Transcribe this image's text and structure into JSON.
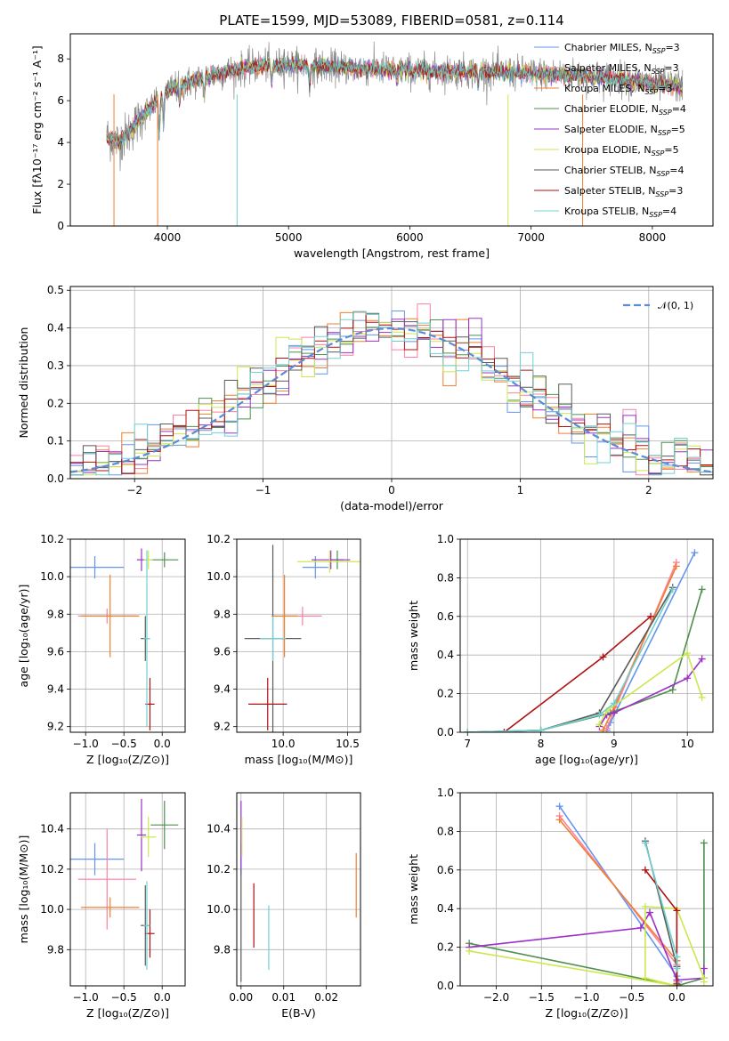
{
  "colors": {
    "Chabrier MILES": "#6495ed",
    "Salpeter MILES": "#ff7f9f",
    "Kroupa MILES": "#f07f2e",
    "Chabrier ELODIE": "#4f8f4f",
    "Salpeter ELODIE": "#9b30c8",
    "Kroupa ELODIE": "#cbe84f",
    "Chabrier STELIB": "#5a5a5a",
    "Salpeter STELIB": "#b01010",
    "Kroupa STELIB": "#70d0d0"
  },
  "chart_data": [
    {
      "id": "spectrum",
      "type": "line",
      "title": "PLATE=1599, MJD=53089, FIBERID=0581, z=0.114",
      "xlabel": "wavelength [Angstrom, rest frame]",
      "ylabel": "Flux [fλ10⁻¹⁷ erg cm⁻² s⁻¹ A⁻¹]",
      "xlim": [
        3200,
        8500
      ],
      "ylim": [
        0,
        9.2
      ],
      "xticks": [
        "4000",
        "5000",
        "6000",
        "7000",
        "8000"
      ],
      "yticks": [
        "0",
        "2",
        "4",
        "6",
        "8"
      ],
      "observed_trend": {
        "x": [
          3500,
          3600,
          3700,
          3800,
          3900,
          4000,
          4200,
          4400,
          4600,
          4800,
          5000,
          5400,
          5800,
          6200,
          6600,
          7000,
          7400,
          7800,
          8000,
          8200
        ],
        "y": [
          4.3,
          4.0,
          4.6,
          5.3,
          5.9,
          6.5,
          6.9,
          7.3,
          7.5,
          7.7,
          7.7,
          7.6,
          7.5,
          7.4,
          7.4,
          7.3,
          7.2,
          7.0,
          6.8,
          6.7
        ]
      },
      "legend": [
        {
          "label": "Chabrier MILES, N",
          "sub": "SSP",
          "tail": "=3"
        },
        {
          "label": "Salpeter MILES, N",
          "sub": "SSP",
          "tail": "=3"
        },
        {
          "label": "Kroupa MILES, N",
          "sub": "SSP",
          "tail": "=3"
        },
        {
          "label": "Chabrier ELODIE, N",
          "sub": "SSP",
          "tail": "=4"
        },
        {
          "label": "Salpeter ELODIE, N",
          "sub": "SSP",
          "tail": "=5"
        },
        {
          "label": "Kroupa ELODIE, N",
          "sub": "SSP",
          "tail": "=5"
        },
        {
          "label": "Chabrier STELIB, N",
          "sub": "SSP",
          "tail": "=4"
        },
        {
          "label": "Salpeter STELIB, N",
          "sub": "SSP",
          "tail": "=3"
        },
        {
          "label": "Kroupa STELIB, N",
          "sub": "SSP",
          "tail": "=4"
        }
      ],
      "legend_placement": "right"
    },
    {
      "id": "residuals",
      "type": "line",
      "xlabel": "(data-model)/error",
      "ylabel": "Normed distribution",
      "xlim": [
        -2.5,
        2.5
      ],
      "ylim": [
        0,
        0.51
      ],
      "xticks": [
        "−2",
        "−1",
        "0",
        "1",
        "2"
      ],
      "yticks": [
        "0.0",
        "0.1",
        "0.2",
        "0.3",
        "0.4",
        "0.5"
      ],
      "legend": "𝒩(0, 1)",
      "legend_placement": "top-right",
      "gaussian": {
        "mean": 0,
        "sigma": 1
      }
    },
    {
      "id": "age-z",
      "type": "scatter",
      "xlabel": "Z [log₁₀(Z/Z⊙)]",
      "ylabel": "age  [log₁₀(age/yr)]",
      "xlim": [
        -1.2,
        0.3
      ],
      "ylim": [
        9.17,
        10.2
      ],
      "xticks": [
        "−1.0",
        "−0.5",
        "0.0"
      ],
      "yticks": [
        "9.2",
        "9.4",
        "9.6",
        "9.8",
        "10.0",
        "10.2"
      ],
      "points": [
        {
          "model": "Chabrier MILES",
          "x": -0.88,
          "y": 10.05,
          "xerr": 0.38,
          "yerr": 0.06
        },
        {
          "model": "Salpeter MILES",
          "x": -0.72,
          "y": 9.79,
          "xerr": 0.38,
          "yerr": 0.04
        },
        {
          "model": "Kroupa MILES",
          "x": -0.68,
          "y": 9.79,
          "xerr": 0.38,
          "yerr": 0.22
        },
        {
          "model": "Chabrier ELODIE",
          "x": 0.03,
          "y": 10.09,
          "xerr": 0.18,
          "yerr": 0.04
        },
        {
          "model": "Salpeter ELODIE",
          "x": -0.27,
          "y": 10.09,
          "xerr": 0.06,
          "yerr": 0.06
        },
        {
          "model": "Kroupa ELODIE",
          "x": -0.18,
          "y": 10.09,
          "xerr": 0.06,
          "yerr": 0.05
        },
        {
          "model": "Chabrier STELIB",
          "x": -0.22,
          "y": 9.67,
          "xerr": 0.06,
          "yerr": 0.12
        },
        {
          "model": "Salpeter STELIB",
          "x": -0.16,
          "y": 9.32,
          "xerr": 0.06,
          "yerr": 0.14
        },
        {
          "model": "Kroupa STELIB",
          "x": -0.2,
          "y": 9.67,
          "xerr": 0.04,
          "yerr": 0.47
        }
      ]
    },
    {
      "id": "age-mass",
      "type": "scatter",
      "xlabel": "mass [log₁₀(M/M⊙)]",
      "xlim": [
        9.64,
        10.6
      ],
      "ylim": [
        9.17,
        10.2
      ],
      "xticks": [
        "10.0",
        "10.5"
      ],
      "yticks": [
        "9.2",
        "9.4",
        "9.6",
        "9.8",
        "10.0",
        "10.2"
      ],
      "points": [
        {
          "model": "Chabrier MILES",
          "x": 10.25,
          "y": 10.05,
          "xerr": 0.1,
          "yerr": 0.06
        },
        {
          "model": "Salpeter MILES",
          "x": 10.15,
          "y": 9.79,
          "xerr": 0.15,
          "yerr": 0.05
        },
        {
          "model": "Kroupa MILES",
          "x": 10.01,
          "y": 9.79,
          "xerr": 0.1,
          "yerr": 0.22
        },
        {
          "model": "Chabrier ELODIE",
          "x": 10.42,
          "y": 10.09,
          "xerr": 0.05,
          "yerr": 0.05
        },
        {
          "model": "Salpeter ELODIE",
          "x": 10.37,
          "y": 10.09,
          "xerr": 0.15,
          "yerr": 0.05
        },
        {
          "model": "Kroupa ELODIE",
          "x": 10.36,
          "y": 10.08,
          "xerr": 0.25,
          "yerr": 0.06
        },
        {
          "model": "Chabrier STELIB",
          "x": 9.92,
          "y": 9.67,
          "xerr": 0.22,
          "yerr": 0.5
        },
        {
          "model": "Salpeter STELIB",
          "x": 9.88,
          "y": 9.32,
          "xerr": 0.15,
          "yerr": 0.14
        },
        {
          "model": "Kroupa STELIB",
          "x": 9.92,
          "y": 9.67,
          "xerr": 0.1,
          "yerr": 0.12
        }
      ]
    },
    {
      "id": "weight-age",
      "type": "line",
      "xlabel": "age  [log₁₀(age/yr)]",
      "ylabel": "mass weight",
      "xlim": [
        6.9,
        10.35
      ],
      "ylim": [
        0,
        1.0
      ],
      "xticks": [
        "7",
        "8",
        "9",
        "10"
      ],
      "yticks": [
        "0.0",
        "0.2",
        "0.4",
        "0.6",
        "0.8",
        "1.0"
      ],
      "series": [
        {
          "model": "Chabrier MILES",
          "x": [
            8.9,
            8.95,
            10.1
          ],
          "y": [
            0.01,
            0.05,
            0.93
          ]
        },
        {
          "model": "Salpeter MILES",
          "x": [
            8.9,
            9.0,
            9.85
          ],
          "y": [
            0.02,
            0.11,
            0.88
          ]
        },
        {
          "model": "Kroupa MILES",
          "x": [
            8.85,
            9.0,
            9.85
          ],
          "y": [
            0.01,
            0.13,
            0.86
          ]
        },
        {
          "model": "Chabrier ELODIE",
          "x": [
            7.0,
            8.0,
            8.95,
            9.8,
            10.2
          ],
          "y": [
            0.0,
            0.01,
            0.1,
            0.22,
            0.74
          ]
        },
        {
          "model": "Salpeter ELODIE",
          "x": [
            8.8,
            8.9,
            9.0,
            10.0,
            10.2
          ],
          "y": [
            0.03,
            0.09,
            0.1,
            0.28,
            0.38
          ]
        },
        {
          "model": "Kroupa ELODIE",
          "x": [
            8.8,
            8.9,
            10.0,
            10.2
          ],
          "y": [
            0.04,
            0.11,
            0.41,
            0.18
          ]
        },
        {
          "model": "Chabrier STELIB",
          "x": [
            7.0,
            8.0,
            8.8,
            9.8
          ],
          "y": [
            0.0,
            0.01,
            0.1,
            0.75
          ]
        },
        {
          "model": "Salpeter STELIB",
          "x": [
            7.5,
            8.85,
            9.5
          ],
          "y": [
            0.0,
            0.39,
            0.6
          ]
        },
        {
          "model": "Kroupa STELIB",
          "x": [
            7.0,
            8.0,
            8.8,
            9.0,
            9.8
          ],
          "y": [
            0.0,
            0.01,
            0.09,
            0.15,
            0.74
          ]
        }
      ]
    },
    {
      "id": "mass-z",
      "type": "scatter",
      "xlabel": "Z [log₁₀(Z/Z⊙)]",
      "ylabel": "mass [log₁₀(M/M⊙)]",
      "xlim": [
        -1.2,
        0.3
      ],
      "ylim": [
        9.62,
        10.58
      ],
      "xticks": [
        "−1.0",
        "−0.5",
        "0.0"
      ],
      "yticks": [
        "9.8",
        "10.0",
        "10.2",
        "10.4"
      ],
      "points": [
        {
          "model": "Chabrier MILES",
          "x": -0.88,
          "y": 10.25,
          "xerr": 0.38,
          "yerr": 0.08
        },
        {
          "model": "Salpeter MILES",
          "x": -0.72,
          "y": 10.15,
          "xerr": 0.38,
          "yerr": 0.25
        },
        {
          "model": "Kroupa MILES",
          "x": -0.68,
          "y": 10.01,
          "xerr": 0.38,
          "yerr": 0.05
        },
        {
          "model": "Chabrier ELODIE",
          "x": 0.03,
          "y": 10.42,
          "xerr": 0.18,
          "yerr": 0.12
        },
        {
          "model": "Salpeter ELODIE",
          "x": -0.27,
          "y": 10.37,
          "xerr": 0.06,
          "yerr": 0.18
        },
        {
          "model": "Kroupa ELODIE",
          "x": -0.18,
          "y": 10.36,
          "xerr": 0.1,
          "yerr": 0.1
        },
        {
          "model": "Chabrier STELIB",
          "x": -0.22,
          "y": 9.92,
          "xerr": 0.06,
          "yerr": 0.2
        },
        {
          "model": "Salpeter STELIB",
          "x": -0.16,
          "y": 9.88,
          "xerr": 0.06,
          "yerr": 0.12
        },
        {
          "model": "Kroupa STELIB",
          "x": -0.2,
          "y": 9.92,
          "xerr": 0.04,
          "yerr": 0.22
        }
      ]
    },
    {
      "id": "ebv",
      "type": "scatter",
      "xlabel": "E(B-V)",
      "xlim": [
        -0.001,
        0.028
      ],
      "ylim": [
        9.62,
        10.58
      ],
      "xticks": [
        "0.00",
        "0.01",
        "0.02"
      ],
      "yticks": [
        "9.8",
        "10.0",
        "10.2",
        "10.4"
      ],
      "points": [
        {
          "model": "Chabrier MILES",
          "x": 0.0,
          "y": 10.25,
          "yerr": 0.08
        },
        {
          "model": "Salpeter ELODIE",
          "x": 0.0,
          "y": 10.37,
          "yerr": 0.17
        },
        {
          "model": "Kroupa ELODIE",
          "x": 0.0002,
          "y": 10.36,
          "yerr": 0.1
        },
        {
          "model": "Chabrier STELIB",
          "x": 0.0,
          "y": 9.92,
          "yerr": 0.28
        },
        {
          "model": "Salpeter STELIB",
          "x": 0.003,
          "y": 9.97,
          "yerr": 0.16
        },
        {
          "model": "Kroupa STELIB",
          "x": 0.0065,
          "y": 9.86,
          "yerr": 0.16
        },
        {
          "model": "Kroupa MILES",
          "x": 0.027,
          "y": 10.12,
          "yerr": 0.16
        }
      ]
    },
    {
      "id": "weight-z",
      "type": "line",
      "xlabel": "Z [log₁₀(Z/Z⊙)]",
      "ylabel": "mass weight",
      "xlim": [
        -2.4,
        0.4
      ],
      "ylim": [
        0,
        1.0
      ],
      "xticks": [
        "−2.0",
        "−1.5",
        "−1.0",
        "−0.5",
        "0.0"
      ],
      "yticks": [
        "0.0",
        "0.2",
        "0.4",
        "0.6",
        "0.8",
        "1.0"
      ],
      "series": [
        {
          "model": "Chabrier MILES",
          "x": [
            -1.3,
            0.0,
            0.02
          ],
          "y": [
            0.93,
            0.05,
            0.02
          ]
        },
        {
          "model": "Salpeter MILES",
          "x": [
            -1.3,
            0.0,
            0.0
          ],
          "y": [
            0.88,
            0.11,
            0.02
          ]
        },
        {
          "model": "Kroupa MILES",
          "x": [
            -1.3,
            0.0,
            0.0
          ],
          "y": [
            0.86,
            0.13,
            0.01
          ]
        },
        {
          "model": "Chabrier ELODIE",
          "x": [
            -2.3,
            0.0,
            0.3,
            0.3
          ],
          "y": [
            0.22,
            0.0,
            0.04,
            0.74
          ]
        },
        {
          "model": "Salpeter ELODIE",
          "x": [
            -2.3,
            -0.4,
            -0.3,
            0.0,
            0.3,
            0.3
          ],
          "y": [
            0.2,
            0.3,
            0.38,
            0.03,
            0.04,
            0.09
          ]
        },
        {
          "model": "Kroupa ELODIE",
          "x": [
            -2.3,
            0.0,
            -0.35,
            -0.35,
            0.0,
            0.3,
            0.3
          ],
          "y": [
            0.18,
            0.0,
            0.04,
            0.41,
            0.4,
            0.04,
            0.02
          ]
        },
        {
          "model": "Chabrier STELIB",
          "x": [
            -0.35,
            0.0,
            0.0
          ],
          "y": [
            0.75,
            0.1,
            0.01
          ]
        },
        {
          "model": "Salpeter STELIB",
          "x": [
            -0.35,
            0.0,
            0.0
          ],
          "y": [
            0.6,
            0.39,
            0.0
          ]
        },
        {
          "model": "Kroupa STELIB",
          "x": [
            -0.35,
            0.0,
            0.0
          ],
          "y": [
            0.74,
            0.15,
            0.09
          ]
        }
      ]
    }
  ]
}
